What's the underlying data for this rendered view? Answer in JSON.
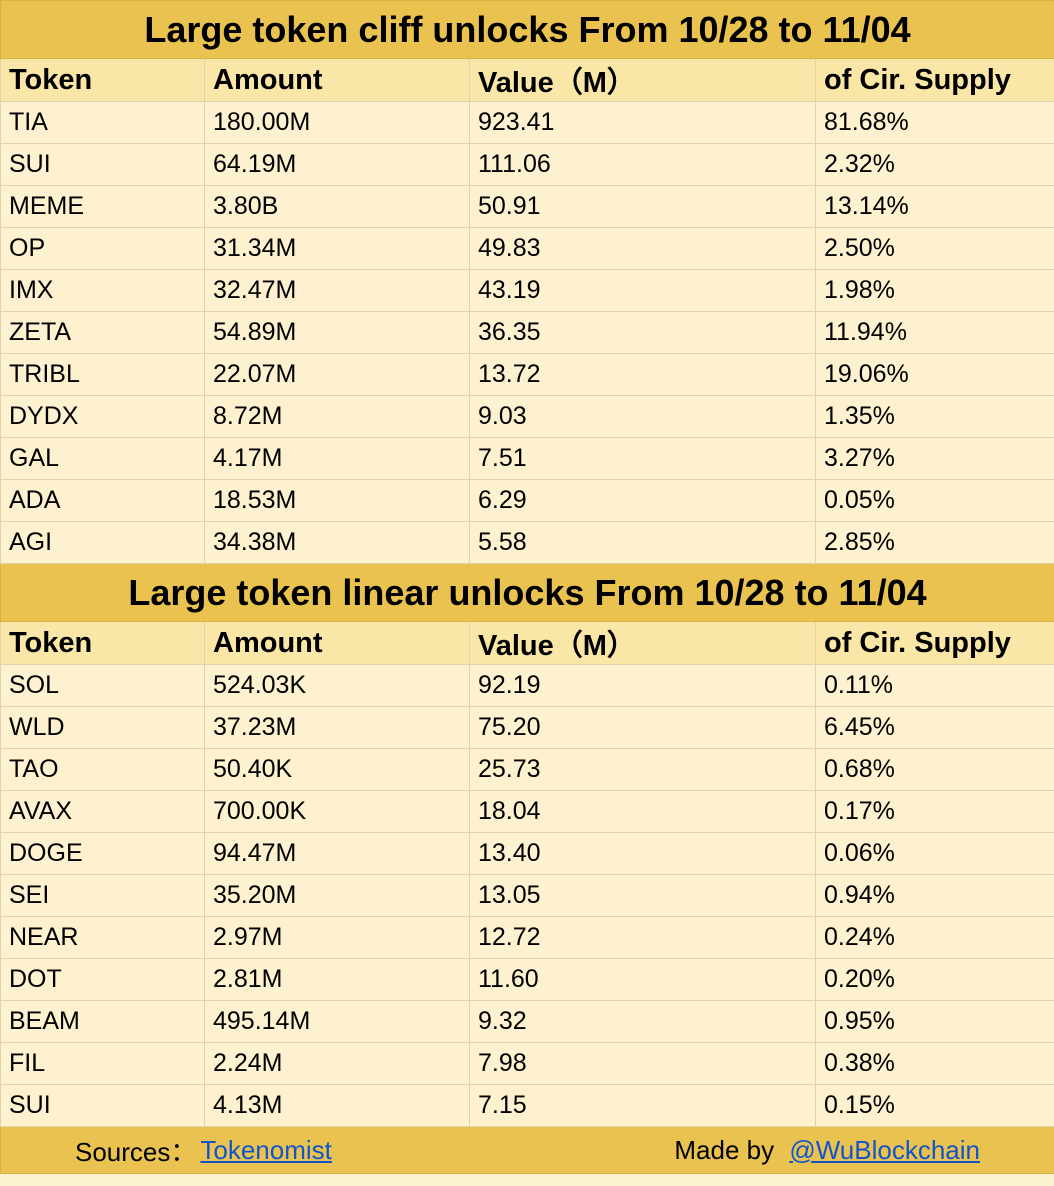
{
  "cliff": {
    "title": "Large token cliff unlocks From 10/28 to 11/04",
    "headers": [
      "Token",
      "Amount",
      "Value（M）",
      "of Cir. Supply"
    ],
    "rows": [
      [
        "TIA",
        "180.00M",
        "923.41",
        "81.68%"
      ],
      [
        "SUI",
        "64.19M",
        "111.06",
        "2.32%"
      ],
      [
        "MEME",
        "3.80B",
        "50.91",
        "13.14%"
      ],
      [
        "OP",
        "31.34M",
        "49.83",
        "2.50%"
      ],
      [
        "IMX",
        "32.47M",
        "43.19",
        "1.98%"
      ],
      [
        "ZETA",
        "54.89M",
        "36.35",
        "11.94%"
      ],
      [
        "TRIBL",
        "22.07M",
        "13.72",
        "19.06%"
      ],
      [
        "DYDX",
        "8.72M",
        "9.03",
        "1.35%"
      ],
      [
        "GAL",
        "4.17M",
        "7.51",
        "3.27%"
      ],
      [
        "ADA",
        "18.53M",
        "6.29",
        "0.05%"
      ],
      [
        "AGI",
        "34.38M",
        "5.58",
        "2.85%"
      ]
    ]
  },
  "linear": {
    "title": "Large token linear unlocks From 10/28 to 11/04",
    "headers": [
      "Token",
      "Amount",
      "Value（M）",
      "of Cir. Supply"
    ],
    "rows": [
      [
        "SOL",
        "524.03K",
        "92.19",
        "0.11%"
      ],
      [
        "WLD",
        "37.23M",
        "75.20",
        "6.45%"
      ],
      [
        "TAO",
        "50.40K",
        "25.73",
        "0.68%"
      ],
      [
        "AVAX",
        "700.00K",
        "18.04",
        "0.17%"
      ],
      [
        "DOGE",
        "94.47M",
        "13.40",
        "0.06%"
      ],
      [
        "SEI",
        "35.20M",
        "13.05",
        "0.94%"
      ],
      [
        "NEAR",
        "2.97M",
        "12.72",
        "0.24%"
      ],
      [
        "DOT",
        "2.81M",
        "11.60",
        "0.20%"
      ],
      [
        "BEAM",
        "495.14M",
        "9.32",
        "0.95%"
      ],
      [
        "FIL",
        "2.24M",
        "7.98",
        "0.38%"
      ],
      [
        "SUI",
        "4.13M",
        "7.15",
        "0.15%"
      ]
    ]
  },
  "footer": {
    "sources_label": "Sources：",
    "sources_link": "Tokenomist",
    "made_by_label": "Made by",
    "made_by_link": "@WuBlockchain"
  },
  "colors": {
    "title_bg": "#eac24f",
    "header_bg": "#fae6a6",
    "cell_bg": "#fdf1cf",
    "link": "#1155cc"
  }
}
